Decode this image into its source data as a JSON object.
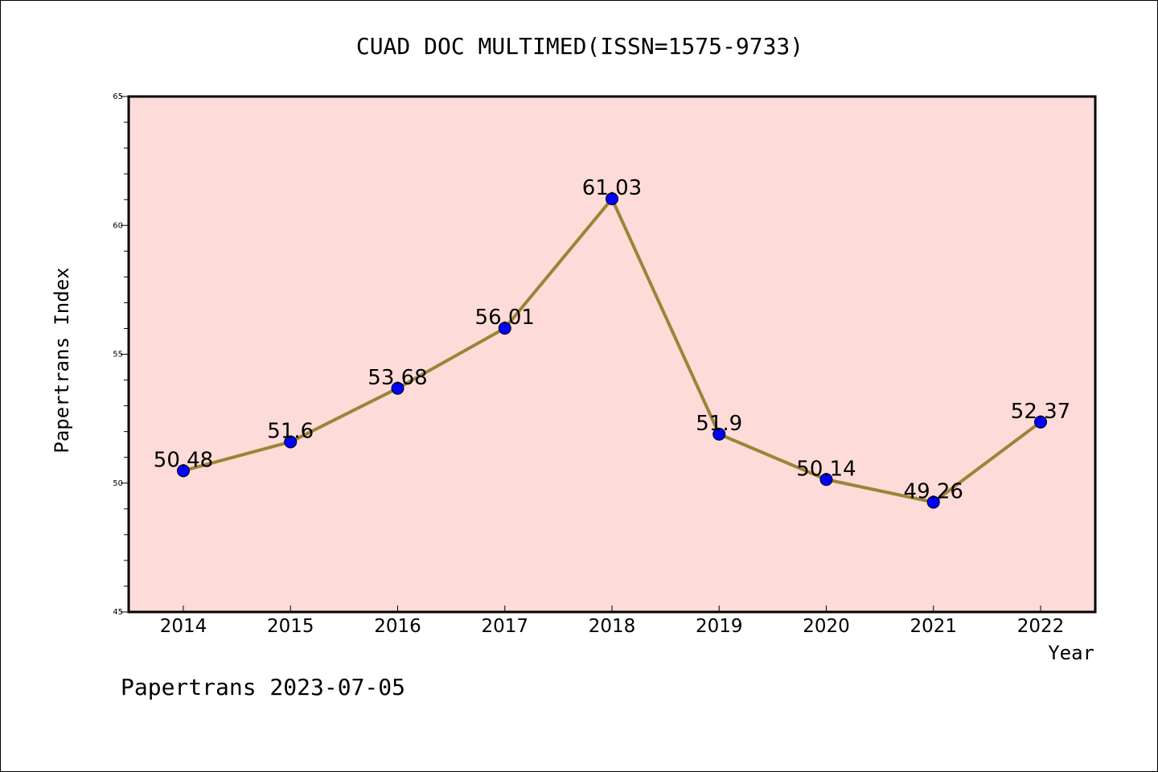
{
  "chart_data": {
    "type": "line",
    "title": "CUAD DOC MULTIMED(ISSN=1575-9733)",
    "xlabel": "Year",
    "ylabel": "Papertrans Index",
    "categories": [
      "2014",
      "2015",
      "2016",
      "2017",
      "2018",
      "2019",
      "2020",
      "2021",
      "2022"
    ],
    "series": [
      {
        "values": [
          50.48,
          51.6,
          53.68,
          56.01,
          61.03,
          51.9,
          50.14,
          49.26,
          52.37
        ],
        "data_labels": [
          "50.48",
          "51.6",
          "53.68",
          "56.01",
          "61.03",
          "51.9",
          "50.14",
          "49.26",
          "52.37"
        ]
      }
    ],
    "ylim": [
      45,
      65
    ],
    "yticks": [
      "45",
      "50",
      "55",
      "60",
      "65"
    ],
    "grid": false,
    "legend": "none",
    "colors": {
      "plot_background": "#fddbd8",
      "line": "#9b8438",
      "marker": "#0000ff",
      "frame": "#000000"
    }
  },
  "footer": "Papertrans 2023-07-05"
}
